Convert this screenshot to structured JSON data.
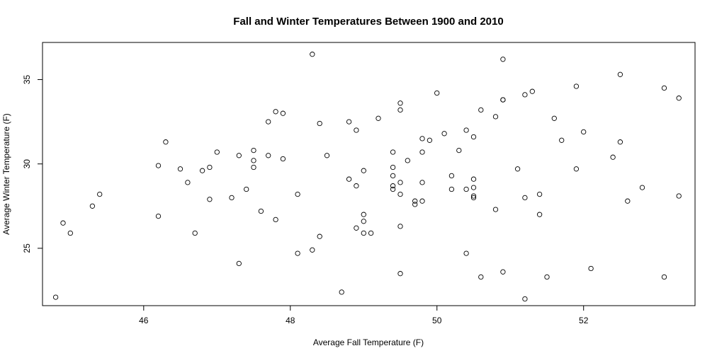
{
  "chart_data": {
    "type": "scatter",
    "title": "Fall and Winter Temperatures Between 1900 and 2010",
    "xlabel": "Average Fall Temperature (F)",
    "ylabel": "Average Winter Temperature (F)",
    "xlim": [
      44.62,
      53.52
    ],
    "ylim": [
      21.6,
      37.2
    ],
    "xticks": [
      46,
      48,
      50,
      52
    ],
    "yticks": [
      25,
      30,
      35
    ],
    "grid": false,
    "marker": "open-circle",
    "point_color": "#000000",
    "points": [
      [
        44.8,
        22.1
      ],
      [
        44.9,
        26.5
      ],
      [
        45.0,
        25.9
      ],
      [
        45.3,
        27.5
      ],
      [
        45.4,
        28.2
      ],
      [
        46.2,
        29.9
      ],
      [
        46.2,
        26.9
      ],
      [
        46.3,
        31.3
      ],
      [
        46.5,
        29.7
      ],
      [
        46.6,
        28.9
      ],
      [
        46.7,
        25.9
      ],
      [
        46.8,
        29.6
      ],
      [
        46.9,
        29.8
      ],
      [
        46.9,
        27.9
      ],
      [
        47.0,
        30.7
      ],
      [
        47.2,
        28.0
      ],
      [
        47.3,
        30.5
      ],
      [
        47.3,
        24.1
      ],
      [
        47.4,
        28.5
      ],
      [
        47.5,
        30.8
      ],
      [
        47.5,
        30.2
      ],
      [
        47.5,
        29.8
      ],
      [
        47.6,
        27.2
      ],
      [
        47.7,
        32.5
      ],
      [
        47.7,
        30.5
      ],
      [
        47.8,
        33.1
      ],
      [
        47.8,
        26.7
      ],
      [
        47.9,
        33.0
      ],
      [
        47.9,
        30.3
      ],
      [
        48.1,
        28.2
      ],
      [
        48.1,
        24.7
      ],
      [
        48.3,
        36.5
      ],
      [
        48.3,
        24.9
      ],
      [
        48.4,
        32.4
      ],
      [
        48.4,
        25.7
      ],
      [
        48.5,
        30.5
      ],
      [
        48.7,
        22.4
      ],
      [
        48.8,
        32.5
      ],
      [
        48.8,
        29.1
      ],
      [
        48.9,
        32.0
      ],
      [
        48.9,
        28.7
      ],
      [
        48.9,
        26.2
      ],
      [
        49.0,
        29.6
      ],
      [
        49.0,
        27.0
      ],
      [
        49.0,
        26.6
      ],
      [
        49.0,
        25.9
      ],
      [
        49.1,
        25.9
      ],
      [
        49.2,
        32.7
      ],
      [
        49.4,
        30.7
      ],
      [
        49.4,
        29.8
      ],
      [
        49.4,
        29.3
      ],
      [
        49.4,
        28.7
      ],
      [
        49.4,
        28.5
      ],
      [
        49.5,
        33.6
      ],
      [
        49.5,
        33.2
      ],
      [
        49.5,
        28.9
      ],
      [
        49.5,
        28.2
      ],
      [
        49.5,
        26.3
      ],
      [
        49.5,
        23.5
      ],
      [
        49.6,
        30.2
      ],
      [
        49.7,
        27.8
      ],
      [
        49.7,
        27.6
      ],
      [
        49.8,
        31.5
      ],
      [
        49.8,
        30.7
      ],
      [
        49.8,
        28.9
      ],
      [
        49.8,
        27.8
      ],
      [
        49.9,
        31.4
      ],
      [
        50.0,
        34.2
      ],
      [
        50.1,
        31.8
      ],
      [
        50.2,
        29.3
      ],
      [
        50.2,
        28.5
      ],
      [
        50.3,
        30.8
      ],
      [
        50.4,
        32.0
      ],
      [
        50.4,
        28.5
      ],
      [
        50.4,
        24.7
      ],
      [
        50.5,
        31.6
      ],
      [
        50.5,
        29.1
      ],
      [
        50.5,
        28.6
      ],
      [
        50.5,
        28.1
      ],
      [
        50.5,
        28.0
      ],
      [
        50.6,
        33.2
      ],
      [
        50.6,
        23.3
      ],
      [
        50.8,
        32.8
      ],
      [
        50.8,
        27.3
      ],
      [
        50.9,
        36.2
      ],
      [
        50.9,
        33.8
      ],
      [
        50.9,
        33.8
      ],
      [
        50.9,
        23.6
      ],
      [
        51.1,
        29.7
      ],
      [
        51.2,
        34.1
      ],
      [
        51.2,
        28.0
      ],
      [
        51.2,
        22.0
      ],
      [
        51.3,
        34.3
      ],
      [
        51.4,
        28.2
      ],
      [
        51.4,
        27.0
      ],
      [
        51.5,
        23.3
      ],
      [
        51.6,
        32.7
      ],
      [
        51.7,
        31.4
      ],
      [
        51.9,
        34.6
      ],
      [
        51.9,
        29.7
      ],
      [
        52.0,
        31.9
      ],
      [
        52.1,
        23.8
      ],
      [
        52.4,
        30.4
      ],
      [
        52.5,
        35.3
      ],
      [
        52.5,
        31.3
      ],
      [
        52.6,
        27.8
      ],
      [
        52.8,
        28.6
      ],
      [
        53.1,
        34.5
      ],
      [
        53.1,
        23.3
      ],
      [
        53.3,
        33.9
      ],
      [
        53.3,
        28.1
      ]
    ]
  }
}
